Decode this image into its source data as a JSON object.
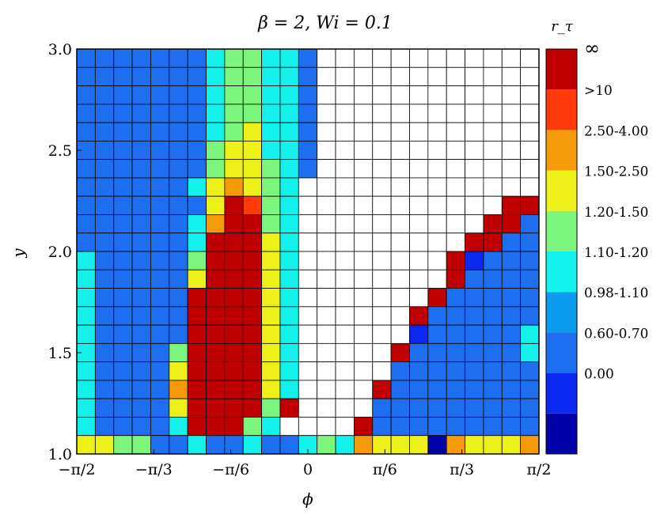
{
  "chart_data": {
    "type": "heatmap",
    "title": "β = 2, Wi = 0.1",
    "xlabel": "ϕ",
    "ylabel": "y",
    "x_range": [
      -1.5708,
      1.5708
    ],
    "y_range": [
      1.0,
      3.0
    ],
    "x_ticks": [
      {
        "value": -1.5708,
        "label": "−π/2"
      },
      {
        "value": -1.0472,
        "label": "−π/3"
      },
      {
        "value": -0.5236,
        "label": "−π/6"
      },
      {
        "value": 0.0,
        "label": "0"
      },
      {
        "value": 0.5236,
        "label": "π/6"
      },
      {
        "value": 1.0472,
        "label": "π/3"
      },
      {
        "value": 1.5708,
        "label": "π/2"
      }
    ],
    "y_ticks": [
      {
        "value": 1.0,
        "label": "1.0"
      },
      {
        "value": 1.5,
        "label": "1.5"
      },
      {
        "value": 2.0,
        "label": "2.0"
      },
      {
        "value": 2.5,
        "label": "2.5"
      },
      {
        "value": 3.0,
        "label": "3.0"
      }
    ],
    "grid_columns": 25,
    "grid_rows": 22,
    "colorbar": {
      "title": "r_τ",
      "classes": [
        {
          "label": "",
          "color": "#0000a8"
        },
        {
          "label": "0.00",
          "color": "#0a28f0"
        },
        {
          "label": "0.60-0.70",
          "color": "#1e6ef0"
        },
        {
          "label": "0.98-1.10",
          "color": "#0a9aee"
        },
        {
          "label": "1.10-1.20",
          "color": "#14f0ec"
        },
        {
          "label": "1.20-1.50",
          "color": "#7cf57c"
        },
        {
          "label": "1.50-2.50",
          "color": "#eef01a"
        },
        {
          "label": "2.50-4.00",
          "color": "#f59b0a"
        },
        {
          "label": ">10",
          "color": "#ff3a0a"
        },
        {
          "label": "∞",
          "color": "#c00000"
        }
      ]
    },
    "cell_colors": {
      "W": "#ffffff",
      "B": "#1e6ef0",
      "b": "#0a28f0",
      "d": "#0000a8",
      "c": "#14f0ec",
      "g": "#7cf57c",
      "y": "#eef01a",
      "o": "#f59b0a",
      "r": "#ff3a0a",
      "R": "#c00000"
    },
    "rows_top_to_bottom": [
      "BBBBBBBcggccBWWWWWWWWWWWW",
      "BBBBBBBcggccBWWWWWWWWWWWW",
      "BBBBBBBcggccBWWWWWWWWWWWW",
      "BBBBBBBcggccBWWWWWWWWWWWW",
      "BBBBBBBcgyccBWWWWWWWWWWWW",
      "BBBBBBBgyyccBWWWWWWWWWWWW",
      "BBBBBBBgyygcBWWWWWWWWWWWW",
      "BBBBBBcyoygcWWWWWWWWWWWWW",
      "BBBBBBByRrgcWWWWWWWWWWWRR",
      "BBBBBBcoRRgcWWWWWWWWWWRRB",
      "BBBBBBcRRRycWWWWWWWWWRRBB",
      "cBBBBBgRRRycWWWWWWWWRbBBB",
      "cBBBBByRRRycWWWWWWWWRBBBB",
      "cBBBBBRRRRycWWWWWWWRBBBBB",
      "cBBBBBRRRRycWWWWWWRBBBBBB",
      "cBBBBBRRRRycWWWWWWbBBBBBc",
      "cBBBBgRRRRycWWWWWRBBBBBBc",
      "cBBBByRRRRycWWWWWBBBBBBBB",
      "cBBBBoRRRRycWWWWRBBBBBBBB",
      "cBBBByRRRRgRWWWWBBBBBBBBB",
      "cBBBBcRRRgcWWWWRBBBBBBBBB",
      "yyggBBcBBcBBcgcoyyydoyyyo"
    ]
  }
}
